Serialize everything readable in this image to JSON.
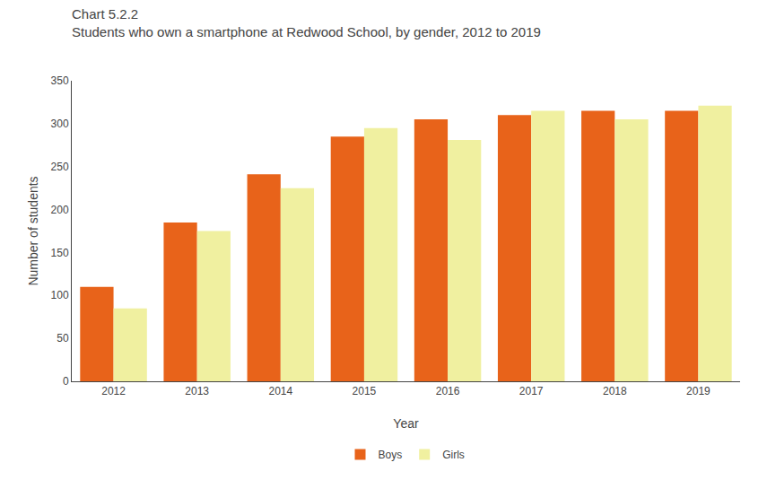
{
  "chart_data": {
    "type": "bar",
    "title": "Chart 5.2.2",
    "subtitle": "Students who own a smartphone at Redwood School, by gender, 2012 to 2019",
    "xlabel": "Year",
    "ylabel": "Number of students",
    "categories": [
      2012,
      2013,
      2014,
      2015,
      2016,
      2017,
      2018,
      2019
    ],
    "series": [
      {
        "name": "Boys",
        "color": "#E8631A",
        "values": [
          110,
          185,
          241,
          285,
          305,
          310,
          315,
          315
        ]
      },
      {
        "name": "Girls",
        "color": "#F0F0A0",
        "values": [
          85,
          175,
          225,
          295,
          281,
          315,
          305,
          321
        ]
      }
    ],
    "ylim": [
      0,
      350
    ],
    "yticks": [
      0,
      50,
      100,
      150,
      200,
      250,
      300,
      350
    ],
    "grid": false,
    "legend": "bottom"
  }
}
